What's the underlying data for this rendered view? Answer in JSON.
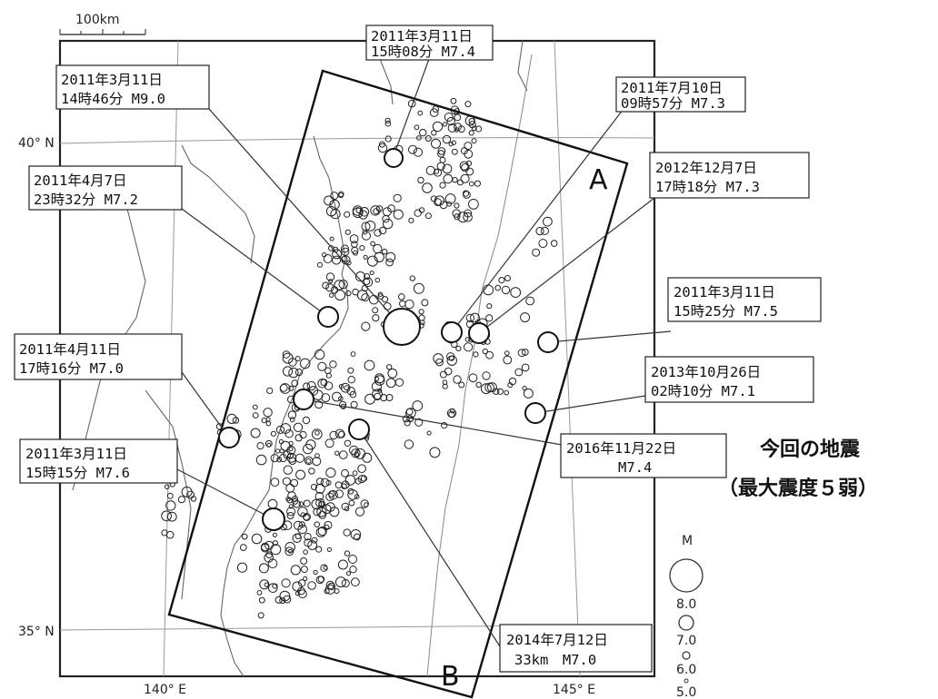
{
  "map": {
    "scale_label": "100km",
    "lat_labels": [
      "40° N",
      "35° N"
    ],
    "lon_labels": [
      "140° E",
      "145° E"
    ],
    "region_corner_labels": [
      "A",
      "B"
    ]
  },
  "current_event": {
    "title": "今回の地震",
    "subtitle": "（最大震度５弱）"
  },
  "legend": {
    "header": "M",
    "magnitudes": [
      "8.0",
      "7.0",
      "6.0",
      "5.0"
    ]
  },
  "events": [
    {
      "id": "e1",
      "line1": "2011年3月11日",
      "line2": "15時08分 M7.4"
    },
    {
      "id": "e2",
      "line1": "2011年3月11日",
      "line2": "14時46分 M9.0"
    },
    {
      "id": "e3",
      "line1": "2011年7月10日",
      "line2": "09時57分 M7.3"
    },
    {
      "id": "e4",
      "line1": "2011年4月7日",
      "line2": "23時32分 M7.2"
    },
    {
      "id": "e5",
      "line1": "2012年12月7日",
      "line2": "17時18分 M7.3"
    },
    {
      "id": "e6",
      "line1": "2011年3月11日",
      "line2": "15時25分 M7.5"
    },
    {
      "id": "e7",
      "line1": "2011年4月11日",
      "line2": "17時16分 M7.0"
    },
    {
      "id": "e8",
      "line1": "2013年10月26日",
      "line2": "02時10分 M7.1"
    },
    {
      "id": "e9",
      "line1": "2016年11月22日",
      "line2": "M7.4"
    },
    {
      "id": "e10",
      "line1": "2011年3月11日",
      "line2": "15時15分 M7.6"
    },
    {
      "id": "e11",
      "line1": "2014年7月12日",
      "line2": "33km　M7.0"
    }
  ]
}
